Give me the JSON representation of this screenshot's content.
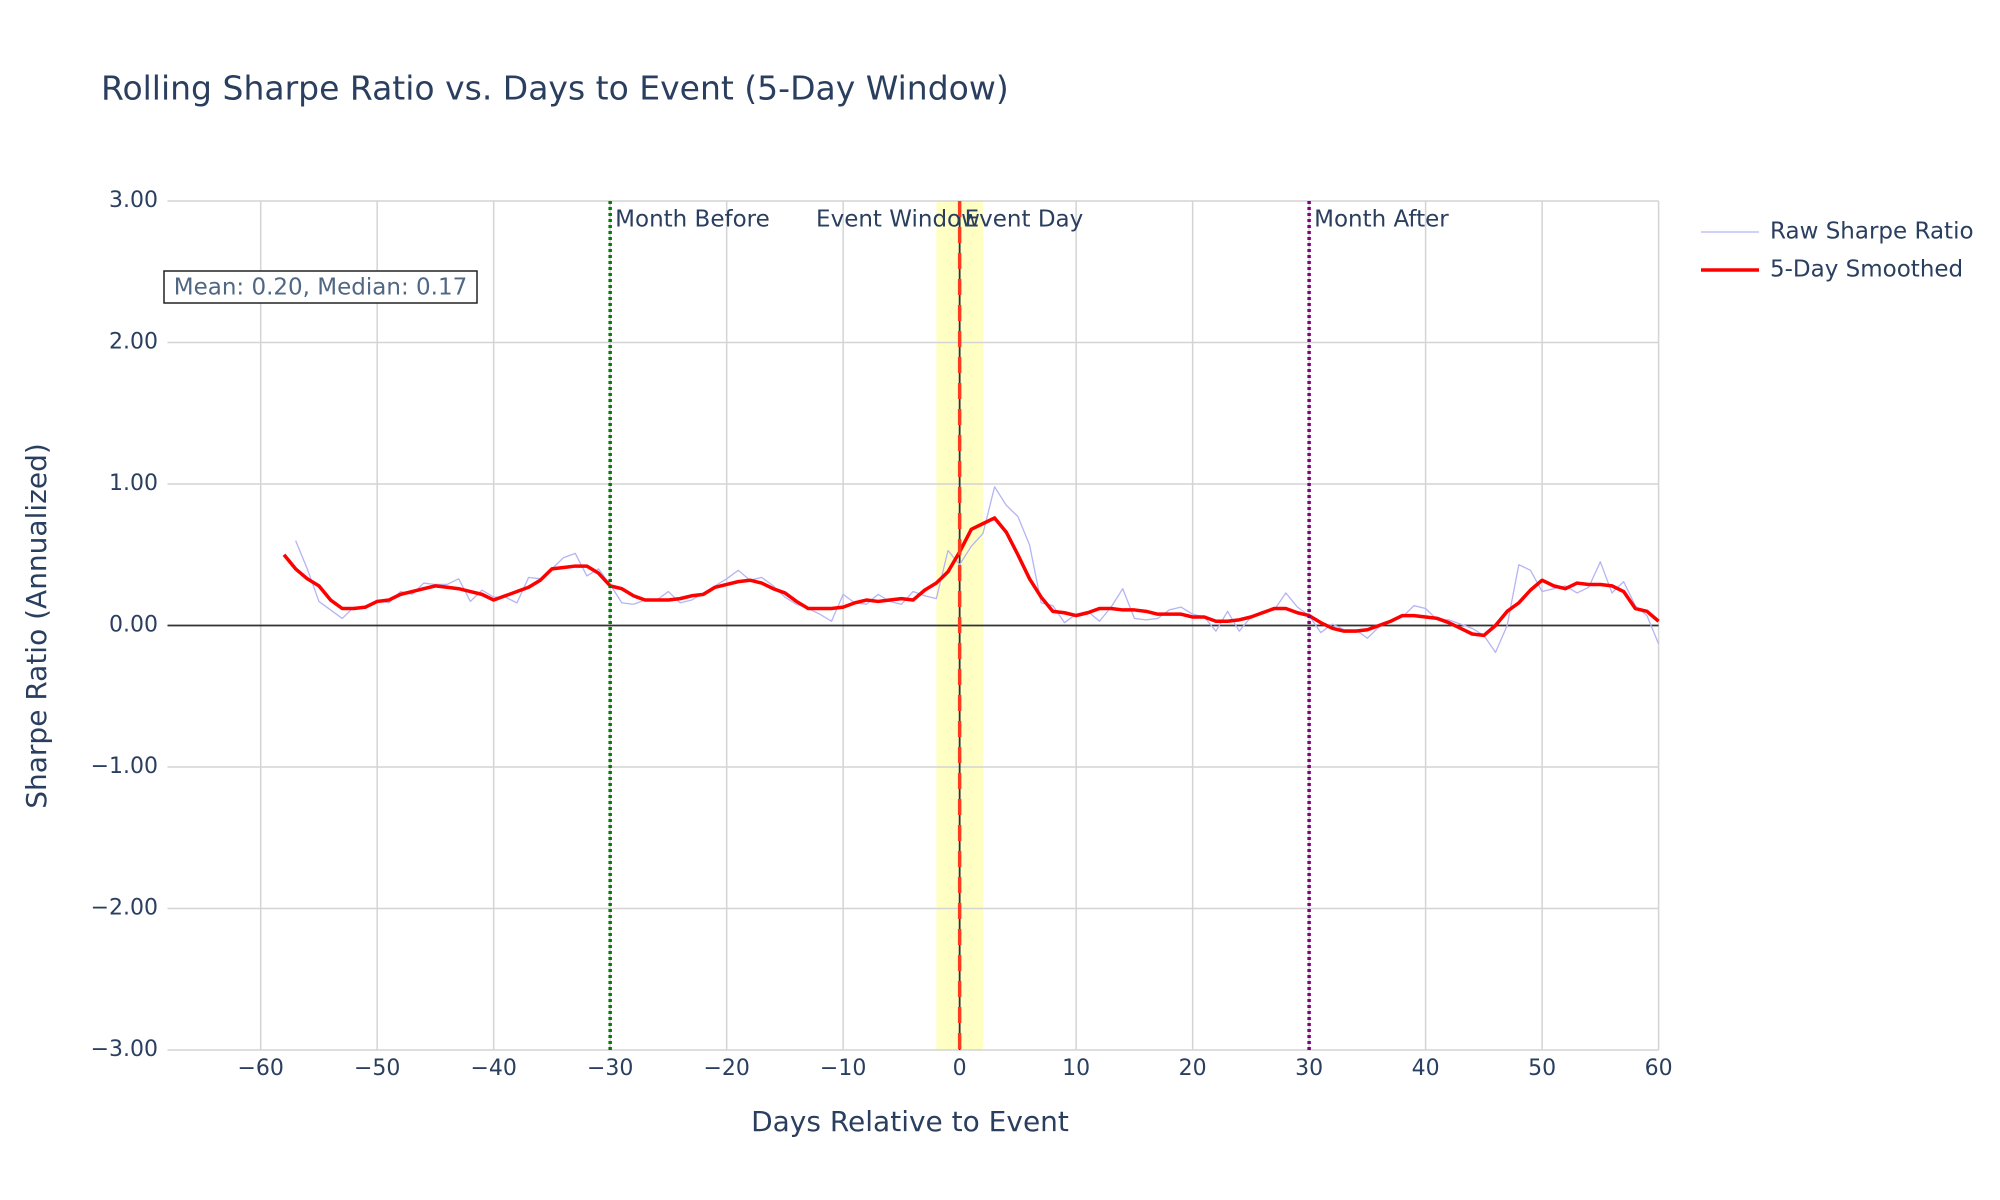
{
  "chart_data": {
    "type": "line",
    "title": "Rolling Sharpe Ratio vs. Days to Event (5-Day Window)",
    "x_label": "Days Relative to Event",
    "y_label": "Sharpe Ratio (Annualized)",
    "x": [
      -58,
      -57,
      -56,
      -55,
      -54,
      -53,
      -52,
      -51,
      -50,
      -49,
      -48,
      -47,
      -46,
      -45,
      -44,
      -43,
      -42,
      -41,
      -40,
      -39,
      -38,
      -37,
      -36,
      -35,
      -34,
      -33,
      -32,
      -31,
      -30,
      -29,
      -28,
      -27,
      -26,
      -25,
      -24,
      -23,
      -22,
      -21,
      -20,
      -19,
      -18,
      -17,
      -16,
      -15,
      -14,
      -13,
      -12,
      -11,
      -10,
      -9,
      -8,
      -7,
      -6,
      -5,
      -4,
      -3,
      -2,
      -1,
      0,
      1,
      2,
      3,
      4,
      5,
      6,
      7,
      8,
      9,
      10,
      11,
      12,
      13,
      14,
      15,
      16,
      17,
      18,
      19,
      20,
      21,
      22,
      23,
      24,
      25,
      26,
      27,
      28,
      29,
      30,
      31,
      32,
      33,
      34,
      35,
      36,
      37,
      38,
      39,
      40,
      41,
      42,
      43,
      44,
      45,
      46,
      47,
      48,
      49,
      50,
      51,
      52,
      53,
      54,
      55,
      56,
      57,
      58,
      59,
      60
    ],
    "series": [
      {
        "name": "Raw Sharpe Ratio",
        "color": "#b4b4f5",
        "width": 1.3,
        "values": [
          null,
          0.6,
          0.4,
          0.17,
          0.11,
          0.05,
          0.13,
          0.12,
          0.18,
          0.16,
          0.24,
          0.22,
          0.3,
          0.29,
          0.29,
          0.33,
          0.17,
          0.25,
          0.2,
          0.2,
          0.16,
          0.34,
          0.33,
          0.4,
          0.48,
          0.51,
          0.35,
          0.4,
          0.29,
          0.16,
          0.15,
          0.18,
          0.18,
          0.24,
          0.16,
          0.18,
          0.23,
          0.28,
          0.33,
          0.39,
          0.32,
          0.34,
          0.28,
          0.2,
          0.15,
          0.12,
          0.08,
          0.03,
          0.22,
          0.16,
          0.15,
          0.22,
          0.17,
          0.15,
          0.24,
          0.21,
          0.19,
          0.53,
          0.43,
          0.56,
          0.65,
          0.98,
          0.85,
          0.77,
          0.57,
          0.16,
          0.14,
          0.02,
          0.08,
          0.1,
          0.03,
          0.13,
          0.26,
          0.05,
          0.04,
          0.05,
          0.11,
          0.13,
          0.08,
          0.06,
          -0.04,
          0.1,
          -0.04,
          0.06,
          0.1,
          0.11,
          0.23,
          0.13,
          0.07,
          -0.05,
          0.01,
          -0.03,
          -0.03,
          -0.09,
          -0.01,
          0.03,
          0.06,
          0.14,
          0.12,
          0.04,
          0.04,
          0.01,
          -0.02,
          -0.07,
          -0.19,
          0.0,
          0.43,
          0.39,
          0.24,
          0.26,
          0.28,
          0.23,
          0.27,
          0.45,
          0.23,
          0.31,
          0.14,
          0.07,
          -0.13
        ]
      },
      {
        "name": "5-Day Smoothed",
        "color": "#ff0000",
        "width": 3.5,
        "values": [
          0.5,
          0.4,
          0.33,
          0.28,
          0.18,
          0.12,
          0.12,
          0.13,
          0.17,
          0.18,
          0.22,
          0.24,
          0.26,
          0.28,
          0.27,
          0.26,
          0.24,
          0.22,
          0.18,
          0.21,
          0.24,
          0.27,
          0.32,
          0.4,
          0.41,
          0.42,
          0.42,
          0.37,
          0.28,
          0.26,
          0.21,
          0.18,
          0.18,
          0.18,
          0.19,
          0.21,
          0.22,
          0.27,
          0.29,
          0.31,
          0.32,
          0.3,
          0.26,
          0.23,
          0.17,
          0.12,
          0.12,
          0.12,
          0.13,
          0.16,
          0.18,
          0.17,
          0.18,
          0.19,
          0.18,
          0.25,
          0.3,
          0.38,
          0.52,
          0.68,
          0.72,
          0.76,
          0.66,
          0.5,
          0.33,
          0.2,
          0.1,
          0.09,
          0.07,
          0.09,
          0.12,
          0.12,
          0.11,
          0.11,
          0.1,
          0.08,
          0.08,
          0.08,
          0.06,
          0.06,
          0.03,
          0.03,
          0.04,
          0.06,
          0.09,
          0.12,
          0.12,
          0.09,
          0.07,
          0.02,
          -0.02,
          -0.04,
          -0.04,
          -0.03,
          0.0,
          0.03,
          0.07,
          0.07,
          0.06,
          0.05,
          0.02,
          -0.02,
          -0.06,
          -0.07,
          0.0,
          0.1,
          0.16,
          0.25,
          0.32,
          0.28,
          0.26,
          0.3,
          0.29,
          0.29,
          0.28,
          0.24,
          0.12,
          0.1,
          0.03
        ]
      }
    ],
    "xlim": [
      -68,
      60
    ],
    "ylim": [
      -3,
      3
    ],
    "xticks": [
      {
        "value": -60,
        "label": "−60"
      },
      {
        "value": -50,
        "label": "−50"
      },
      {
        "value": -40,
        "label": "−40"
      },
      {
        "value": -30,
        "label": "−30"
      },
      {
        "value": -20,
        "label": "−20"
      },
      {
        "value": -10,
        "label": "−10"
      },
      0,
      10,
      20,
      30,
      40,
      50,
      60
    ],
    "yticks": [
      {
        "value": -3,
        "label": "−3.00"
      },
      {
        "value": -2,
        "label": "−2.00"
      },
      {
        "value": -1,
        "label": "−1.00"
      },
      {
        "value": 0,
        "label": "0.00"
      },
      {
        "value": 1,
        "label": "1.00"
      },
      {
        "value": 2,
        "label": "2.00"
      },
      {
        "value": 3,
        "label": "3.00"
      }
    ],
    "grid": true,
    "zeroline": true,
    "legend": "outside-top-right",
    "vrect": {
      "x0": -2,
      "x1": 2,
      "color": "#ffffc4",
      "label": "Event Window"
    },
    "vlines": [
      {
        "x": -30,
        "color": "#008000",
        "dash": "dot",
        "label": "Month Before"
      },
      {
        "x": 0,
        "color": "#ff3b1f",
        "dash": "dash",
        "label": "Event Day"
      },
      {
        "x": 30,
        "color": "#800080",
        "dash": "dot",
        "label": "Month After"
      }
    ],
    "annotation": "Mean: 0.20, Median: 0.17"
  }
}
